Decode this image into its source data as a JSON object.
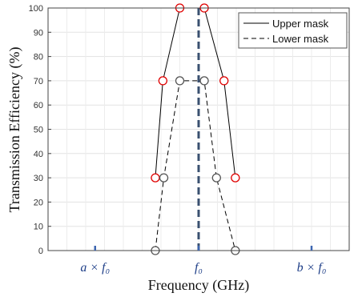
{
  "chart_data": {
    "type": "line",
    "title": "",
    "xlabel": "Frequency (GHz)",
    "ylabel": "Transmission Efficiency (%)",
    "ylim": [
      0,
      100
    ],
    "xlim": [
      0,
      16
    ],
    "yticks": [
      0,
      10,
      20,
      30,
      40,
      50,
      60,
      70,
      80,
      90,
      100
    ],
    "grid": true,
    "legend_position": "top-right",
    "x_tick_labels": [
      {
        "x": 2.5,
        "label": "a × f₀"
      },
      {
        "x": 8.0,
        "label": "f₀"
      },
      {
        "x": 14.0,
        "label": "b × f₀"
      }
    ],
    "center_line": {
      "x": 8.0,
      "style": "dashed",
      "color": "#3a5070"
    },
    "series": [
      {
        "name": "Upper mask",
        "line_style": "solid",
        "line_color": "#000000",
        "marker_color": "#e00000",
        "x": [
          5.7,
          6.1,
          7.0,
          7.95,
          8.3,
          9.35,
          9.95
        ],
        "y": [
          30,
          70,
          100,
          100,
          100,
          70,
          30
        ],
        "marker_indices": [
          0,
          1,
          2,
          4,
          5,
          6
        ]
      },
      {
        "name": "Lower mask",
        "line_style": "dashed",
        "line_color": "#000000",
        "marker_color": "#555555",
        "x": [
          5.7,
          6.15,
          7.0,
          7.95,
          8.3,
          8.95,
          9.95
        ],
        "y": [
          0,
          30,
          70,
          70,
          70,
          30,
          0
        ],
        "marker_indices": [
          0,
          1,
          2,
          4,
          5,
          6
        ]
      }
    ]
  }
}
